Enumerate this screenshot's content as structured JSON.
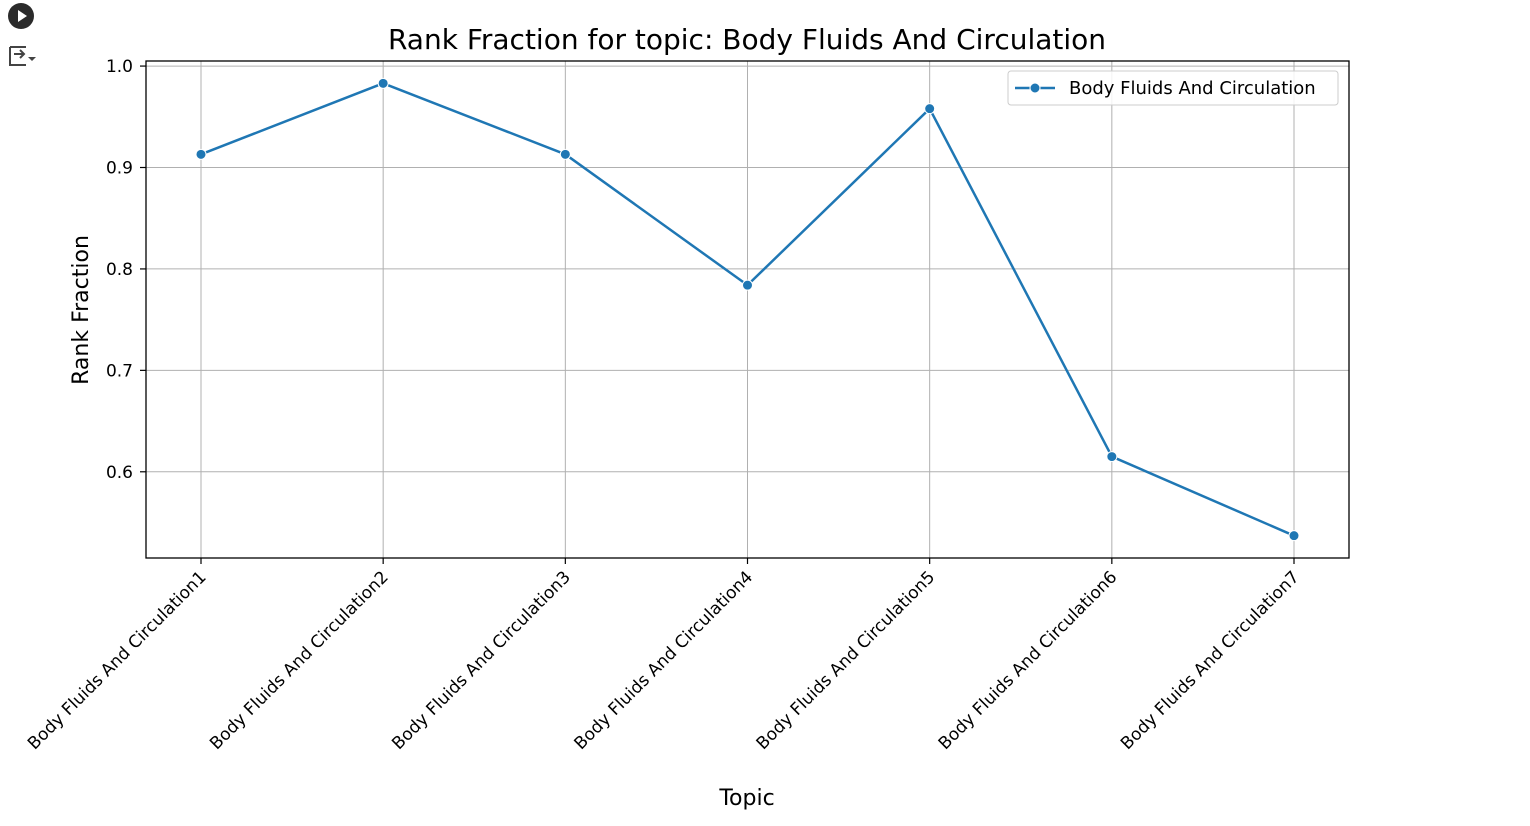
{
  "notebook": {
    "run_icon": "play-circle-icon",
    "output_icon": "output-toggle-icon"
  },
  "chart_data": {
    "type": "line",
    "title": "Rank Fraction for topic: Body Fluids And Circulation",
    "xlabel": "Topic",
    "ylabel": "Rank Fraction",
    "categories": [
      "Body Fluids And Circulation1",
      "Body Fluids And Circulation2",
      "Body Fluids And Circulation3",
      "Body Fluids And Circulation4",
      "Body Fluids And Circulation5",
      "Body Fluids And Circulation6",
      "Body Fluids And Circulation7"
    ],
    "series": [
      {
        "name": "Body Fluids And Circulation",
        "values": [
          0.913,
          0.983,
          0.913,
          0.784,
          0.958,
          0.615,
          0.537
        ],
        "color": "#1f77b4",
        "marker": "circle"
      }
    ],
    "yticks": [
      "0.6",
      "0.7",
      "0.8",
      "0.9",
      "1.0"
    ],
    "ylim": [
      0.515,
      1.005
    ],
    "grid": true,
    "legend_position": "top-right",
    "x_tick_rotation": -45
  }
}
